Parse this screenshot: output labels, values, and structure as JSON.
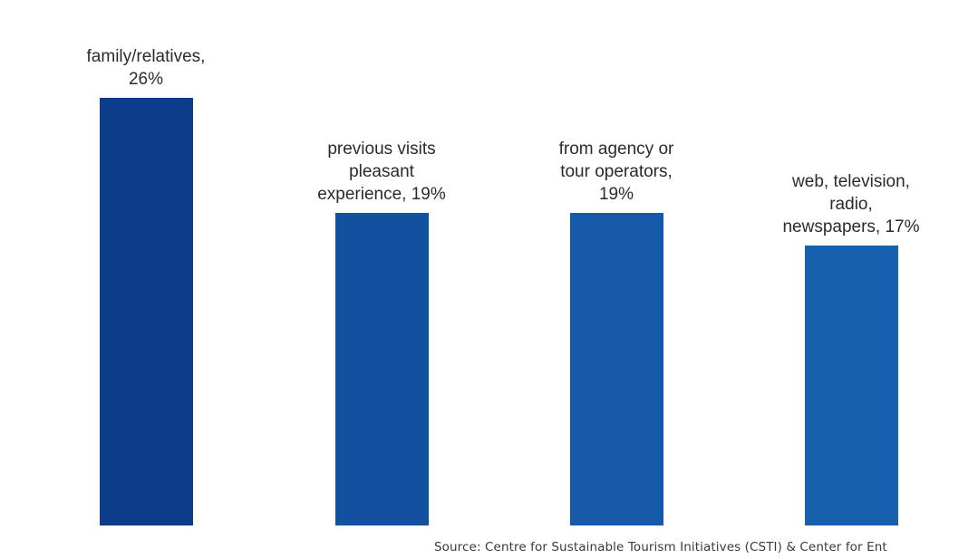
{
  "chart_data": {
    "type": "bar",
    "categories": [
      "family/relatives,",
      "previous visits pleasant experience,",
      "from agency or tour operators,",
      "web, television, radio, newspapers,"
    ],
    "values": [
      26,
      19,
      19,
      17
    ],
    "value_suffix": "%",
    "data_labels": [
      [
        "family/relatives,",
        "26%"
      ],
      [
        "previous visits",
        "pleasant",
        "experience, 19%"
      ],
      [
        "from agency or",
        "tour operators,",
        "19%"
      ],
      [
        "web, television,",
        "radio,",
        "newspapers, 17%"
      ]
    ],
    "bar_colors": [
      "#0d3d8a",
      "#13509e",
      "#155aa8",
      "#1660ad"
    ],
    "ylim": [
      0,
      26
    ],
    "grid": false,
    "legend": "none"
  },
  "source_text": "Source: Centre for Sustainable Tourism Initiatives (CSTI) & Center for Ent"
}
